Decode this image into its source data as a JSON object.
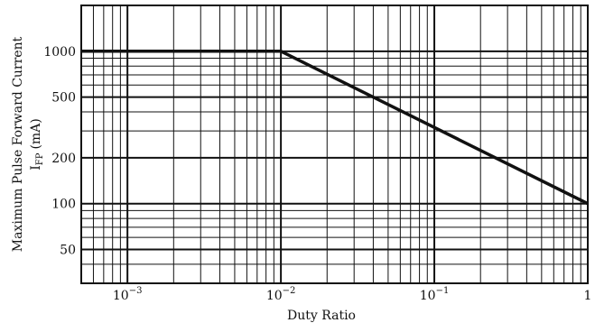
{
  "chart_data": {
    "type": "line",
    "title": "",
    "xlabel": "Duty Ratio",
    "ylabel_line1": "Maximum Pulse Forward Current",
    "ylabel_line2_main": "I",
    "ylabel_line2_sub": "FP",
    "ylabel_line2_unit": "(mA)",
    "x_scale": "log",
    "y_scale": "log",
    "xlim": [
      0.0005,
      1
    ],
    "ylim": [
      30,
      2000
    ],
    "grid": true,
    "x_ticks": [
      {
        "value": 0.001,
        "base": "10",
        "exp": "−3"
      },
      {
        "value": 0.01,
        "base": "10",
        "exp": "−2"
      },
      {
        "value": 0.1,
        "base": "10",
        "exp": "−1"
      },
      {
        "value": 1,
        "base": "1",
        "exp": ""
      }
    ],
    "y_ticks": [
      {
        "value": 50,
        "label": "50"
      },
      {
        "value": 100,
        "label": "100"
      },
      {
        "value": 200,
        "label": "200"
      },
      {
        "value": 500,
        "label": "500"
      },
      {
        "value": 1000,
        "label": "1000"
      }
    ],
    "series": [
      {
        "x": [
          0.0005,
          0.01,
          1
        ],
        "y": [
          1000,
          1000,
          100
        ]
      }
    ]
  }
}
